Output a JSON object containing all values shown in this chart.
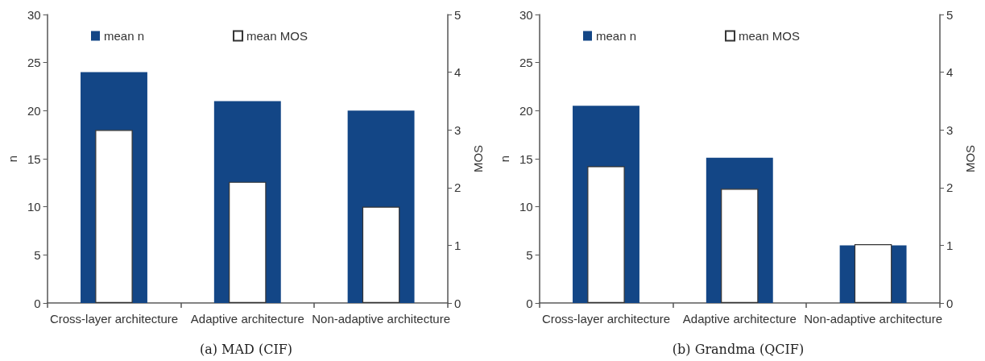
{
  "chart_data": [
    {
      "type": "bar",
      "title": "(a) MAD (CIF)",
      "ylabel": "n",
      "y2label": "MOS",
      "categories": [
        "Cross-layer architecture",
        "Adaptive architecture",
        "Non-adaptive architecture"
      ],
      "series": [
        {
          "name": "mean n",
          "color": "#134686",
          "values": [
            24,
            21,
            20
          ]
        },
        {
          "name": "mean MOS",
          "color": "#ffffff",
          "axis": "y2",
          "values": [
            3.0,
            2.1,
            1.67
          ]
        }
      ],
      "ylim": [
        0,
        30
      ],
      "yticks": [
        0,
        5,
        10,
        15,
        20,
        25,
        30
      ],
      "y2lim": [
        0,
        5
      ],
      "y2ticks": [
        0,
        1,
        2,
        3,
        4,
        5
      ],
      "grid": false,
      "legend": "top left"
    },
    {
      "type": "bar",
      "title": "(b) Grandma (QCIF)",
      "ylabel": "n",
      "y2label": "MOS",
      "categories": [
        "Cross-layer architecture",
        "Adaptive architecture",
        "Non-adaptive architecture"
      ],
      "series": [
        {
          "name": "mean n",
          "color": "#134686",
          "values": [
            20.5,
            15.1,
            6
          ]
        },
        {
          "name": "mean MOS",
          "color": "#ffffff",
          "axis": "y2",
          "values": [
            2.37,
            1.98,
            1.02
          ]
        }
      ],
      "ylim": [
        0,
        30
      ],
      "yticks": [
        0,
        5,
        10,
        15,
        20,
        25,
        30
      ],
      "y2lim": [
        0,
        5
      ],
      "y2ticks": [
        0,
        1,
        2,
        3,
        4,
        5
      ],
      "grid": false,
      "legend": "top left"
    }
  ]
}
